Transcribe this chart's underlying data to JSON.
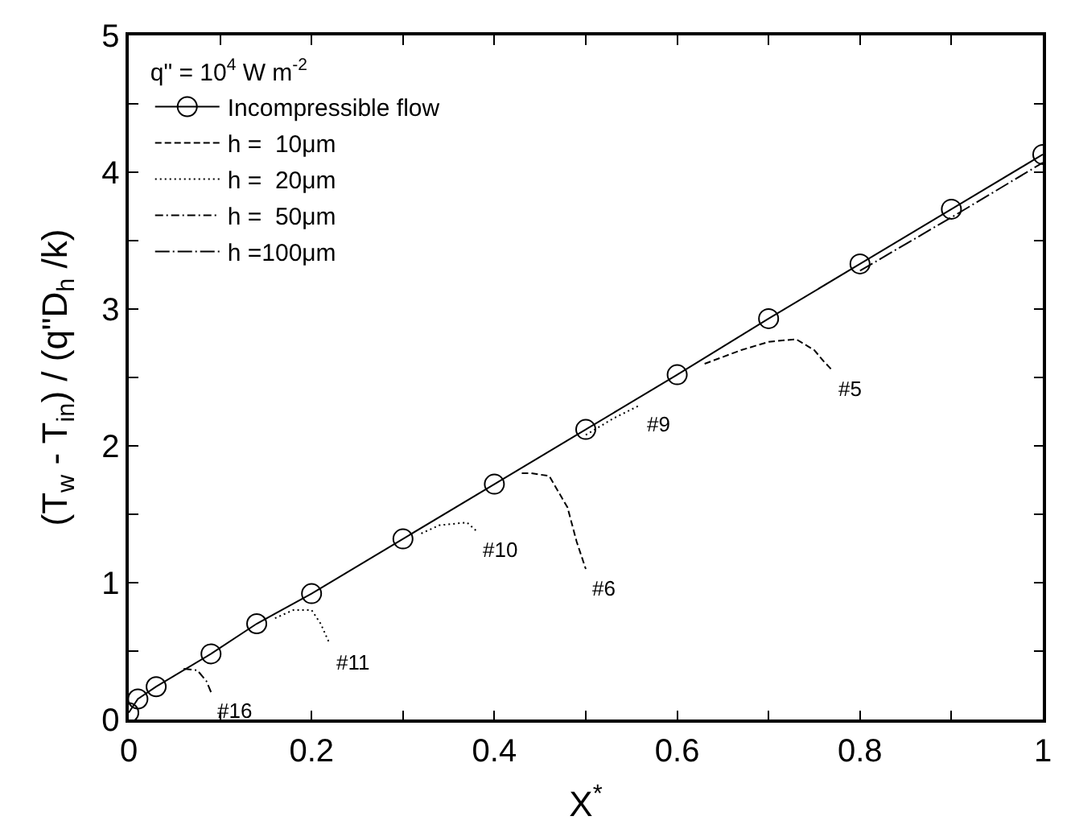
{
  "chart_data": {
    "type": "line",
    "xlabel": "X$^{*}$",
    "ylabel": "(T$_{w}$ - T$_{in}$) / (q\"D$_{h}$ /k)",
    "legend_title": "q\" = 10$^{4}$ W m$^{-2}$",
    "legend": "top left",
    "xlim": [
      0,
      1
    ],
    "ylim": [
      0,
      5
    ],
    "xticks": [
      0,
      {
        "value": 0.1,
        "label": null
      },
      0.2,
      {
        "value": 0.3,
        "label": null
      },
      0.4,
      {
        "value": 0.5,
        "label": null
      },
      0.6,
      {
        "value": 0.7,
        "label": null
      },
      0.8,
      {
        "value": 0.9,
        "label": null
      },
      1
    ],
    "yticks": [
      0,
      {
        "value": 0.5,
        "label": null
      },
      1,
      {
        "value": 1.5,
        "label": null
      },
      2,
      {
        "value": 2.5,
        "label": null
      },
      3,
      {
        "value": 3.5,
        "label": null
      },
      4,
      {
        "value": 4.5,
        "label": null
      },
      5
    ],
    "series": [
      {
        "name": "Incompressible flow",
        "color": "#000000",
        "marker": "circle",
        "line_style": "solid",
        "x": [
          0,
          0.01,
          0.03,
          0.09,
          0.14,
          0.2,
          0.3,
          0.4,
          0.5,
          0.6,
          0.7,
          0.8,
          0.9,
          1.0
        ],
        "values": [
          0.05,
          0.15,
          0.24,
          0.48,
          0.7,
          0.92,
          1.32,
          1.72,
          2.12,
          2.52,
          2.93,
          3.33,
          3.73,
          4.13
        ]
      },
      {
        "name": "h =  10μm",
        "color": "#000000",
        "marker": "none",
        "line_style": "dashed",
        "x": [
          0.63,
          0.67,
          0.7,
          0.73,
          0.75,
          0.76,
          0.77
        ],
        "values": [
          2.6,
          2.7,
          2.76,
          2.78,
          2.7,
          2.62,
          2.55
        ]
      },
      {
        "color": "#000000",
        "marker": "none",
        "line_style": "dashed",
        "x": [
          0.43,
          0.44,
          0.46,
          0.48,
          0.49,
          0.5
        ],
        "values": [
          1.8,
          1.8,
          1.78,
          1.55,
          1.3,
          1.1
        ]
      },
      {
        "name": "h =  20μm",
        "color": "#000000",
        "marker": "none",
        "line_style": "dotted",
        "x": [
          0.5,
          0.53,
          0.56
        ],
        "values": [
          2.08,
          2.2,
          2.3
        ]
      },
      {
        "color": "#000000",
        "marker": "none",
        "line_style": "dotted",
        "x": [
          0.32,
          0.34,
          0.37,
          0.38
        ],
        "values": [
          1.36,
          1.42,
          1.44,
          1.38
        ]
      },
      {
        "color": "#000000",
        "marker": "none",
        "line_style": "dotted",
        "x": [
          0.16,
          0.18,
          0.2,
          0.21,
          0.22
        ],
        "values": [
          0.74,
          0.8,
          0.8,
          0.7,
          0.55
        ]
      },
      {
        "name": "h =  50μm",
        "color": "#000000",
        "marker": "none",
        "line_style": "dashdot",
        "x": [
          0.06,
          0.075,
          0.085,
          0.09
        ],
        "values": [
          0.37,
          0.36,
          0.28,
          0.2
        ]
      },
      {
        "name": "h =100μm",
        "color": "#000000",
        "marker": "none",
        "line_style": "longdashdot",
        "x": [
          0.8,
          0.9,
          1.0
        ],
        "values": [
          3.28,
          3.67,
          4.07
        ]
      }
    ],
    "annotations": [
      {
        "text": "#5",
        "x": 0.77,
        "y": 2.55
      },
      {
        "text": "#9",
        "x": 0.56,
        "y": 2.3
      },
      {
        "text": "#10",
        "x": 0.38,
        "y": 1.38
      },
      {
        "text": "#6",
        "x": 0.5,
        "y": 1.1
      },
      {
        "text": "#11",
        "x": 0.22,
        "y": 0.55
      },
      {
        "text": "#16",
        "x": 0.09,
        "y": 0.2
      }
    ]
  }
}
